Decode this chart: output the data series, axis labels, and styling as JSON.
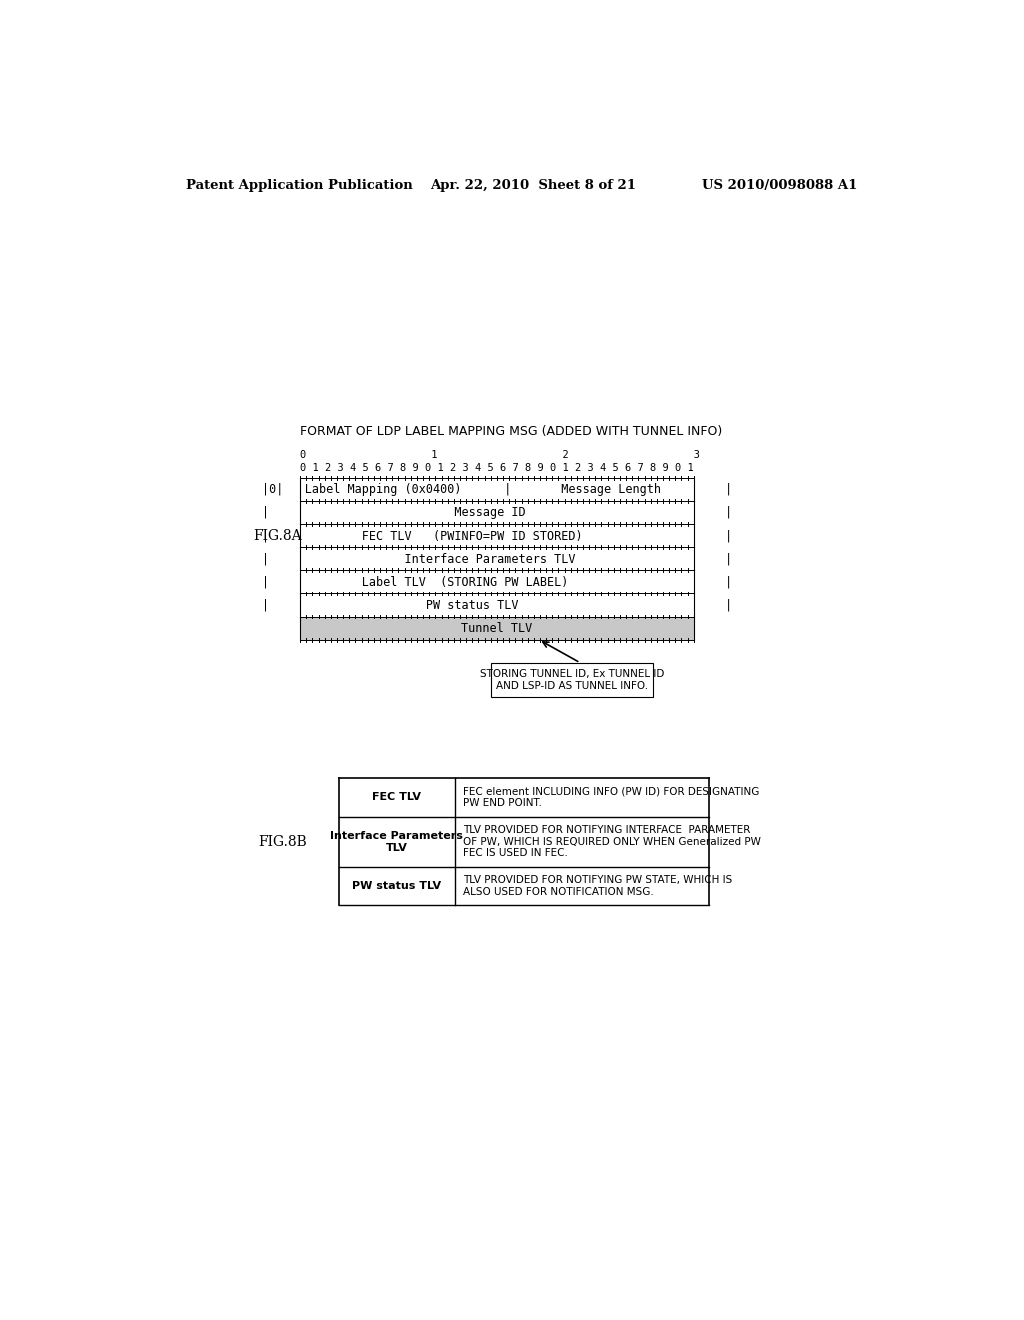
{
  "header_left": "Patent Application Publication",
  "header_center": "Apr. 22, 2010  Sheet 8 of 21",
  "header_right": "US 2010/0098088 A1",
  "fig8a_label": "FIG.8A",
  "fig8b_label": "FIG.8B",
  "diagram_title": "FORMAT OF LDP LABEL MAPPING MSG (ADDED WITH TUNNEL INFO)",
  "bit_row0": "0                    1                    2                    3",
  "bit_row1": "0 1 2 3 4 5 6 7 8 9 0 1 2 3 4 5 6 7 8 9 0 1 2 3 4 5 6 7 8 9 0 1",
  "rows": [
    {
      "text": "|0|   Label Mapping (0x0400)      |       Message Length         |",
      "shaded": false
    },
    {
      "text": "|                          Message ID                            |",
      "shaded": false
    },
    {
      "text": "|             FEC TLV   (PWINFO=PW ID STORED)                    |",
      "shaded": false
    },
    {
      "text": "|                   Interface Parameters TLV                     |",
      "shaded": false
    },
    {
      "text": "|             Label TLV  (STORING PW LABEL)                      |",
      "shaded": false
    },
    {
      "text": "|                      PW status TLV                             |",
      "shaded": false
    },
    {
      "text": "Tunnel TLV",
      "shaded": true
    }
  ],
  "annotation_text": "STORING TUNNEL ID, Ex TUNNEL ID\nAND LSP-ID AS TUNNEL INFO.",
  "table_rows": [
    {
      "left": "FEC TLV",
      "right": "FEC element INCLUDING INFO (PW ID) FOR DESIGNATING\nPW END POINT."
    },
    {
      "left": "Interface Parameters\nTLV",
      "right": "TLV PROVIDED FOR NOTIFYING INTERFACE  PARAMETER\nOF PW, WHICH IS REQUIRED ONLY WHEN Generalized PW\nFEC IS USED IN FEC."
    },
    {
      "left": "PW status TLV",
      "right": "TLV PROVIDED FOR NOTIFYING PW STATE, WHICH IS\nALSO USED FOR NOTIFICATION MSG."
    }
  ],
  "bg_color": "#ffffff",
  "text_color": "#000000",
  "shaded_color": "#c8c8c8",
  "border_color": "#000000"
}
